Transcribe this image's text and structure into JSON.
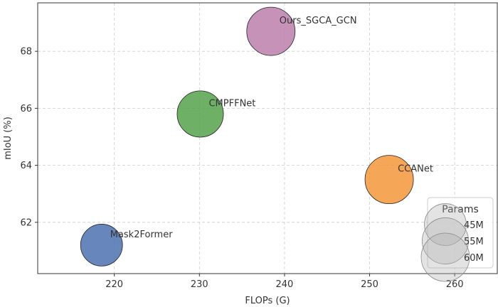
{
  "chart_data": {
    "type": "scatter",
    "title": "",
    "xlabel": "FLOPs (G)",
    "ylabel": "mIoU (%)",
    "xlim": [
      211,
      265
    ],
    "ylim": [
      60.2,
      69.7
    ],
    "xticks": [
      220,
      230,
      240,
      250,
      260
    ],
    "yticks": [
      62,
      64,
      66,
      68
    ],
    "grid": true,
    "points": [
      {
        "name": "Mask2Former",
        "flops": 218.5,
        "miou": 61.2,
        "params": 45,
        "color": "#4c72b0"
      },
      {
        "name": "CMPFFNet",
        "flops": 230.1,
        "miou": 65.8,
        "params": 55,
        "color": "#55a24a"
      },
      {
        "name": "Ours_SGCA_GCN",
        "flops": 238.4,
        "miou": 68.7,
        "params": 60,
        "color": "#bc7fab"
      },
      {
        "name": "CCANet",
        "flops": 252.3,
        "miou": 63.5,
        "params": 60,
        "color": "#f5963a"
      }
    ],
    "legend": {
      "title": "Params",
      "placement": "lower-right",
      "entries": [
        {
          "label": "45M",
          "params": 45
        },
        {
          "label": "55M",
          "params": 55
        },
        {
          "label": "60M",
          "params": 60
        }
      ]
    }
  }
}
